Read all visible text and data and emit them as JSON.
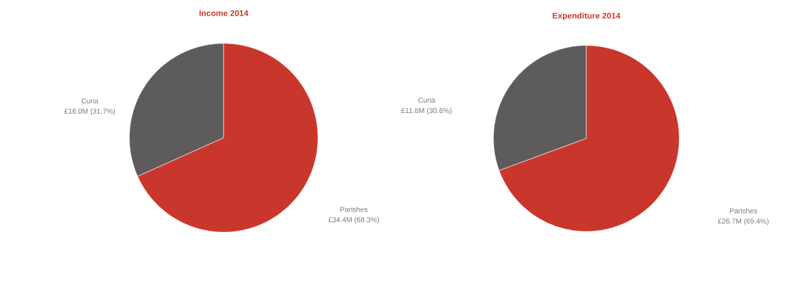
{
  "chart_data": [
    {
      "type": "pie",
      "title": "Income 2014",
      "categories": [
        "Curia",
        "Parishes"
      ],
      "values": [
        31.7,
        68.3
      ],
      "colors": [
        "#5d5b5c",
        "#c9372c"
      ],
      "value_labels": [
        "£16.0M (31.7%)",
        "£34.4M (68.3%)"
      ]
    },
    {
      "type": "pie",
      "title": "Expenditure 2014",
      "categories": [
        "Curia",
        "Parishes"
      ],
      "values": [
        30.6,
        69.4
      ],
      "colors": [
        "#5d5b5c",
        "#c9372c"
      ],
      "value_labels": [
        "£11.8M (30.6%)",
        "£26.7M (69.4%)"
      ]
    }
  ]
}
